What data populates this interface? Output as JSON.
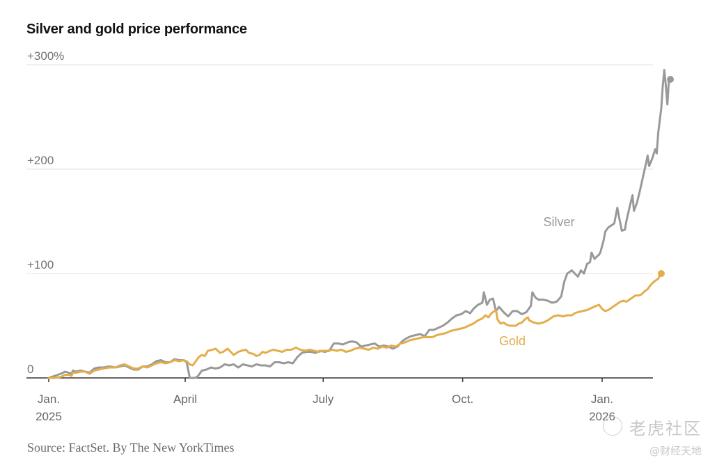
{
  "chart_data": {
    "type": "line",
    "title": "Silver and gold price performance",
    "xlabel": "",
    "ylabel": "",
    "ylim": [
      0,
      300
    ],
    "xlim_days_since_2025_01_01": [
      0,
      400
    ],
    "yticks": [
      {
        "value": 300,
        "label": "+300%"
      },
      {
        "value": 200,
        "label": "+200"
      },
      {
        "value": 100,
        "label": "+100"
      },
      {
        "value": 0,
        "label": "0"
      }
    ],
    "xticks": [
      {
        "day": 0,
        "label": [
          "Jan.",
          "2025"
        ]
      },
      {
        "day": 90,
        "label": [
          "April"
        ]
      },
      {
        "day": 181,
        "label": [
          "July"
        ]
      },
      {
        "day": 273,
        "label": [
          "Oct."
        ]
      },
      {
        "day": 365,
        "label": [
          "Jan.",
          "2026"
        ]
      }
    ],
    "grid": true,
    "series": [
      {
        "name": "Silver",
        "color": "#999999",
        "label": "Silver",
        "points": [
          [
            0,
            0
          ],
          [
            4,
            2
          ],
          [
            8,
            4
          ],
          [
            11,
            6
          ],
          [
            13,
            5
          ],
          [
            15,
            4
          ],
          [
            16,
            7
          ],
          [
            18,
            6
          ],
          [
            21,
            7
          ],
          [
            24,
            6
          ],
          [
            27,
            5
          ],
          [
            30,
            9
          ],
          [
            33,
            10
          ],
          [
            36,
            10
          ],
          [
            40,
            11
          ],
          [
            44,
            10
          ],
          [
            47,
            11
          ],
          [
            50,
            12
          ],
          [
            53,
            10
          ],
          [
            56,
            8
          ],
          [
            59,
            8
          ],
          [
            62,
            11
          ],
          [
            65,
            11
          ],
          [
            68,
            13
          ],
          [
            71,
            16
          ],
          [
            74,
            17
          ],
          [
            77,
            15
          ],
          [
            80,
            15
          ],
          [
            83,
            18
          ],
          [
            86,
            17
          ],
          [
            89,
            17
          ],
          [
            91,
            15
          ],
          [
            93,
            0
          ],
          [
            96,
            0
          ],
          [
            98,
            1
          ],
          [
            101,
            7
          ],
          [
            104,
            8
          ],
          [
            107,
            10
          ],
          [
            110,
            9
          ],
          [
            113,
            10
          ],
          [
            116,
            13
          ],
          [
            119,
            12
          ],
          [
            122,
            13
          ],
          [
            125,
            10
          ],
          [
            128,
            13
          ],
          [
            131,
            12
          ],
          [
            134,
            11
          ],
          [
            137,
            13
          ],
          [
            140,
            12
          ],
          [
            143,
            12
          ],
          [
            146,
            11
          ],
          [
            149,
            15
          ],
          [
            152,
            15
          ],
          [
            155,
            14
          ],
          [
            158,
            15
          ],
          [
            161,
            14
          ],
          [
            164,
            20
          ],
          [
            167,
            24
          ],
          [
            170,
            25
          ],
          [
            173,
            25
          ],
          [
            176,
            24
          ],
          [
            179,
            26
          ],
          [
            182,
            25
          ],
          [
            185,
            26
          ],
          [
            188,
            33
          ],
          [
            191,
            33
          ],
          [
            194,
            32
          ],
          [
            197,
            34
          ],
          [
            200,
            35
          ],
          [
            203,
            34
          ],
          [
            206,
            30
          ],
          [
            209,
            31
          ],
          [
            212,
            32
          ],
          [
            215,
            33
          ],
          [
            218,
            30
          ],
          [
            221,
            31
          ],
          [
            224,
            30
          ],
          [
            227,
            28
          ],
          [
            230,
            30
          ],
          [
            233,
            35
          ],
          [
            236,
            38
          ],
          [
            239,
            40
          ],
          [
            242,
            41
          ],
          [
            245,
            42
          ],
          [
            248,
            40
          ],
          [
            251,
            46
          ],
          [
            254,
            46
          ],
          [
            257,
            48
          ],
          [
            260,
            50
          ],
          [
            263,
            53
          ],
          [
            266,
            57
          ],
          [
            269,
            60
          ],
          [
            272,
            61
          ],
          [
            275,
            64
          ],
          [
            278,
            62
          ],
          [
            280,
            66
          ],
          [
            283,
            70
          ],
          [
            286,
            72
          ],
          [
            287,
            82
          ],
          [
            289,
            70
          ],
          [
            291,
            75
          ],
          [
            293,
            76
          ],
          [
            295,
            64
          ],
          [
            297,
            68
          ],
          [
            300,
            63
          ],
          [
            303,
            59
          ],
          [
            306,
            64
          ],
          [
            309,
            64
          ],
          [
            312,
            61
          ],
          [
            315,
            63
          ],
          [
            318,
            69
          ],
          [
            319,
            82
          ],
          [
            321,
            77
          ],
          [
            323,
            75
          ],
          [
            326,
            75
          ],
          [
            329,
            74
          ],
          [
            332,
            72
          ],
          [
            335,
            73
          ],
          [
            338,
            78
          ],
          [
            340,
            92
          ],
          [
            342,
            100
          ],
          [
            345,
            103
          ],
          [
            347,
            100
          ],
          [
            349,
            97
          ],
          [
            351,
            103
          ],
          [
            353,
            100
          ],
          [
            355,
            109
          ],
          [
            357,
            111
          ],
          [
            358,
            120
          ],
          [
            360,
            114
          ],
          [
            362,
            117
          ],
          [
            363,
            118
          ],
          [
            364,
            121
          ],
          [
            366,
            132
          ],
          [
            367,
            140
          ],
          [
            369,
            144
          ],
          [
            371,
            146
          ],
          [
            373,
            148
          ],
          [
            375,
            163
          ],
          [
            376,
            155
          ],
          [
            378,
            141
          ],
          [
            380,
            142
          ],
          [
            381,
            150
          ],
          [
            383,
            163
          ],
          [
            385,
            175
          ],
          [
            386,
            160
          ],
          [
            388,
            168
          ],
          [
            390,
            180
          ],
          [
            392,
            193
          ],
          [
            394,
            206
          ],
          [
            395,
            213
          ],
          [
            396,
            203
          ],
          [
            398,
            210
          ],
          [
            400,
            219
          ],
          [
            401,
            215
          ],
          [
            402,
            235
          ],
          [
            404,
            258
          ],
          [
            405,
            280
          ],
          [
            406,
            295
          ],
          [
            407,
            280
          ],
          [
            408,
            262
          ],
          [
            409,
            284
          ],
          [
            410,
            286
          ]
        ]
      },
      {
        "name": "Gold",
        "color": "#e4ad4c",
        "label": "Gold",
        "points": [
          [
            0,
            0
          ],
          [
            4,
            0
          ],
          [
            8,
            1
          ],
          [
            11,
            3
          ],
          [
            13,
            3
          ],
          [
            15,
            2
          ],
          [
            16,
            5
          ],
          [
            18,
            5
          ],
          [
            21,
            6
          ],
          [
            24,
            6
          ],
          [
            27,
            4
          ],
          [
            30,
            7
          ],
          [
            33,
            8
          ],
          [
            36,
            9
          ],
          [
            40,
            10
          ],
          [
            44,
            10
          ],
          [
            47,
            12
          ],
          [
            50,
            13
          ],
          [
            53,
            11
          ],
          [
            56,
            9
          ],
          [
            59,
            9
          ],
          [
            62,
            11
          ],
          [
            65,
            10
          ],
          [
            68,
            12
          ],
          [
            71,
            14
          ],
          [
            74,
            15
          ],
          [
            77,
            14
          ],
          [
            80,
            15
          ],
          [
            83,
            17
          ],
          [
            86,
            16
          ],
          [
            89,
            17
          ],
          [
            91,
            16
          ],
          [
            93,
            13
          ],
          [
            95,
            12
          ],
          [
            97,
            16
          ],
          [
            99,
            20
          ],
          [
            101,
            22
          ],
          [
            103,
            21
          ],
          [
            105,
            26
          ],
          [
            108,
            27
          ],
          [
            110,
            28
          ],
          [
            113,
            24
          ],
          [
            115,
            25
          ],
          [
            118,
            28
          ],
          [
            120,
            25
          ],
          [
            122,
            22
          ],
          [
            125,
            25
          ],
          [
            127,
            26
          ],
          [
            130,
            27
          ],
          [
            132,
            24
          ],
          [
            135,
            23
          ],
          [
            137,
            21
          ],
          [
            139,
            22
          ],
          [
            141,
            25
          ],
          [
            143,
            24
          ],
          [
            146,
            26
          ],
          [
            148,
            27
          ],
          [
            151,
            26
          ],
          [
            154,
            25
          ],
          [
            157,
            27
          ],
          [
            160,
            27
          ],
          [
            163,
            29
          ],
          [
            166,
            27
          ],
          [
            169,
            26
          ],
          [
            172,
            27
          ],
          [
            175,
            26
          ],
          [
            178,
            25
          ],
          [
            181,
            26
          ],
          [
            184,
            26
          ],
          [
            187,
            27
          ],
          [
            190,
            26
          ],
          [
            193,
            27
          ],
          [
            196,
            25
          ],
          [
            199,
            26
          ],
          [
            202,
            28
          ],
          [
            205,
            29
          ],
          [
            208,
            28
          ],
          [
            211,
            27
          ],
          [
            214,
            29
          ],
          [
            217,
            28
          ],
          [
            220,
            30
          ],
          [
            223,
            29
          ],
          [
            226,
            31
          ],
          [
            229,
            30
          ],
          [
            232,
            33
          ],
          [
            235,
            34
          ],
          [
            238,
            36
          ],
          [
            241,
            37
          ],
          [
            244,
            38
          ],
          [
            247,
            39
          ],
          [
            250,
            39
          ],
          [
            253,
            39
          ],
          [
            256,
            41
          ],
          [
            259,
            42
          ],
          [
            262,
            43
          ],
          [
            265,
            45
          ],
          [
            268,
            46
          ],
          [
            271,
            47
          ],
          [
            274,
            48
          ],
          [
            277,
            50
          ],
          [
            280,
            52
          ],
          [
            283,
            55
          ],
          [
            286,
            57
          ],
          [
            288,
            60
          ],
          [
            290,
            58
          ],
          [
            292,
            62
          ],
          [
            294,
            64
          ],
          [
            295,
            65
          ],
          [
            296,
            56
          ],
          [
            298,
            52
          ],
          [
            300,
            53
          ],
          [
            302,
            51
          ],
          [
            304,
            50
          ],
          [
            306,
            50
          ],
          [
            308,
            50
          ],
          [
            310,
            52
          ],
          [
            312,
            53
          ],
          [
            314,
            56
          ],
          [
            316,
            58
          ],
          [
            317,
            55
          ],
          [
            320,
            53
          ],
          [
            323,
            52
          ],
          [
            326,
            53
          ],
          [
            329,
            55
          ],
          [
            331,
            57
          ],
          [
            333,
            59
          ],
          [
            336,
            60
          ],
          [
            339,
            59
          ],
          [
            342,
            60
          ],
          [
            345,
            60
          ],
          [
            347,
            62
          ],
          [
            349,
            63
          ],
          [
            352,
            64
          ],
          [
            355,
            65
          ],
          [
            358,
            67
          ],
          [
            361,
            69
          ],
          [
            363,
            70
          ],
          [
            365,
            66
          ],
          [
            367,
            64
          ],
          [
            369,
            65
          ],
          [
            371,
            67
          ],
          [
            373,
            69
          ],
          [
            375,
            71
          ],
          [
            377,
            73
          ],
          [
            379,
            74
          ],
          [
            381,
            73
          ],
          [
            383,
            75
          ],
          [
            385,
            77
          ],
          [
            387,
            79
          ],
          [
            389,
            79
          ],
          [
            391,
            80
          ],
          [
            393,
            83
          ],
          [
            395,
            85
          ],
          [
            397,
            89
          ],
          [
            399,
            92
          ],
          [
            401,
            94
          ],
          [
            402,
            95
          ],
          [
            403,
            98
          ],
          [
            404,
            100
          ]
        ]
      }
    ]
  },
  "source_text": "Source: FactSet.  By The New YorkTimes",
  "watermark": {
    "main": "老虎社区",
    "sub": "@财经天地"
  }
}
